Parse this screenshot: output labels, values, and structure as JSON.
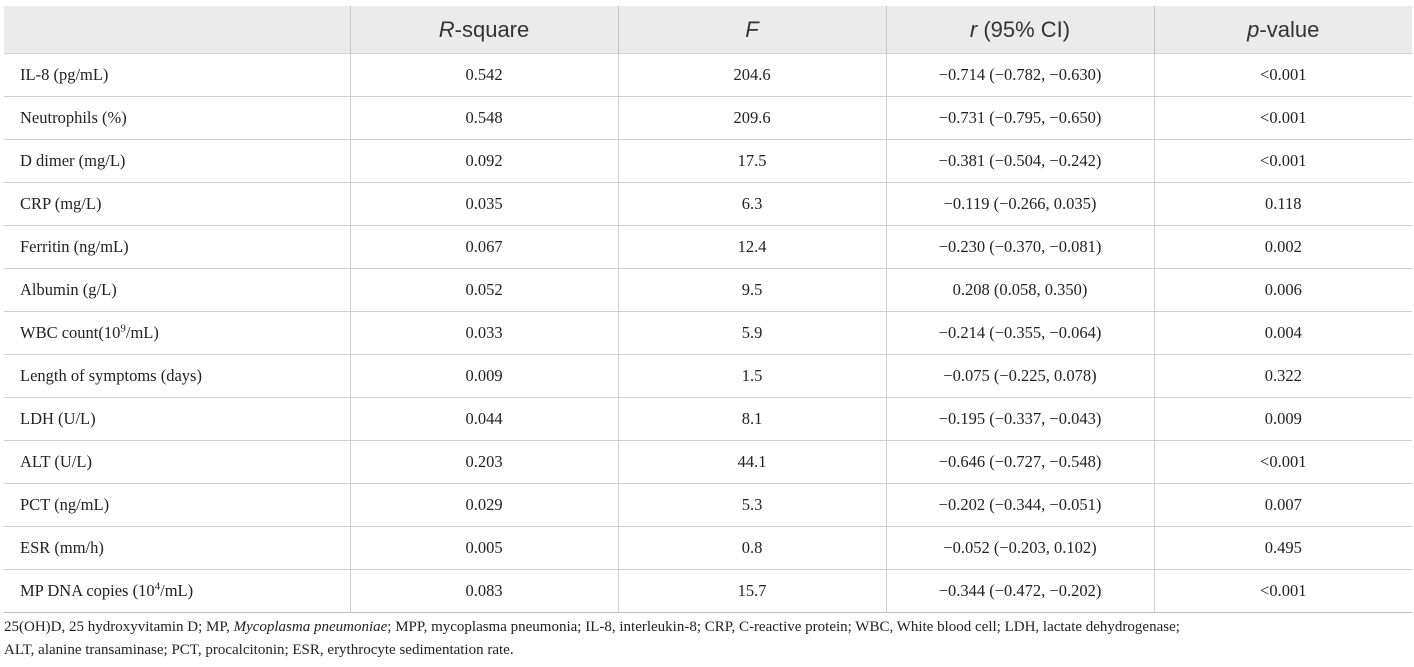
{
  "table": {
    "headers": [
      {
        "italic": "",
        "rest": ""
      },
      {
        "italic": "R",
        "rest": "-square"
      },
      {
        "italic": "F",
        "rest": ""
      },
      {
        "italic": "r",
        "rest": " (95% CI)"
      },
      {
        "italic": "p",
        "rest": "-value"
      }
    ],
    "rows": [
      {
        "label": "IL-8 (pg/mL)",
        "sup": "",
        "suffix": "",
        "r2": "0.542",
        "f": "204.6",
        "r": "−0.714 (−0.782, −0.630)",
        "p": "<0.001"
      },
      {
        "label": "Neutrophils (%)",
        "sup": "",
        "suffix": "",
        "r2": "0.548",
        "f": "209.6",
        "r": "−0.731 (−0.795, −0.650)",
        "p": "<0.001"
      },
      {
        "label": "D dimer (mg/L)",
        "sup": "",
        "suffix": "",
        "r2": "0.092",
        "f": "17.5",
        "r": "−0.381 (−0.504, −0.242)",
        "p": "<0.001"
      },
      {
        "label": "CRP (mg/L)",
        "sup": "",
        "suffix": "",
        "r2": "0.035",
        "f": "6.3",
        "r": "−0.119 (−0.266, 0.035)",
        "p": "0.118"
      },
      {
        "label": "Ferritin (ng/mL)",
        "sup": "",
        "suffix": "",
        "r2": "0.067",
        "f": "12.4",
        "r": "−0.230 (−0.370, −0.081)",
        "p": "0.002"
      },
      {
        "label": "Albumin (g/L)",
        "sup": "",
        "suffix": "",
        "r2": "0.052",
        "f": "9.5",
        "r": "0.208 (0.058, 0.350)",
        "p": "0.006"
      },
      {
        "label": "WBC count(10",
        "sup": "9",
        "suffix": "/mL)",
        "r2": "0.033",
        "f": "5.9",
        "r": "−0.214 (−0.355, −0.064)",
        "p": "0.004"
      },
      {
        "label": "Length of symptoms (days)",
        "sup": "",
        "suffix": "",
        "r2": "0.009",
        "f": "1.5",
        "r": "−0.075 (−0.225, 0.078)",
        "p": "0.322"
      },
      {
        "label": "LDH (U/L)",
        "sup": "",
        "suffix": "",
        "r2": "0.044",
        "f": "8.1",
        "r": "−0.195 (−0.337, −0.043)",
        "p": "0.009"
      },
      {
        "label": "ALT (U/L)",
        "sup": "",
        "suffix": "",
        "r2": "0.203",
        "f": "44.1",
        "r": "−0.646 (−0.727, −0.548)",
        "p": "<0.001"
      },
      {
        "label": "PCT (ng/mL)",
        "sup": "",
        "suffix": "",
        "r2": "0.029",
        "f": "5.3",
        "r": "−0.202 (−0.344, −0.051)",
        "p": "0.007"
      },
      {
        "label": "ESR (mm/h)",
        "sup": "",
        "suffix": "",
        "r2": "0.005",
        "f": "0.8",
        "r": "−0.052 (−0.203, 0.102)",
        "p": "0.495"
      },
      {
        "label": "MP DNA copies (10",
        "sup": "4",
        "suffix": "/mL)",
        "r2": "0.083",
        "f": "15.7",
        "r": "−0.344 (−0.472, −0.202)",
        "p": "<0.001"
      }
    ]
  },
  "footnote": {
    "part1": "25(OH)D, 25 hydroxyvitamin D; MP, ",
    "italic": "Mycoplasma pneumoniae",
    "part2": "; MPP, mycoplasma pneumonia; IL-8, interleukin-8; CRP, C-reactive protein; WBC, White blood cell; LDH, lactate dehydrogenase;",
    "line2": "ALT, alanine transaminase; PCT, procalcitonin; ESR, erythrocyte sedimentation rate."
  },
  "colors": {
    "header_bg": "#ebebeb",
    "border": "#cfcfcf",
    "text": "#222222"
  }
}
